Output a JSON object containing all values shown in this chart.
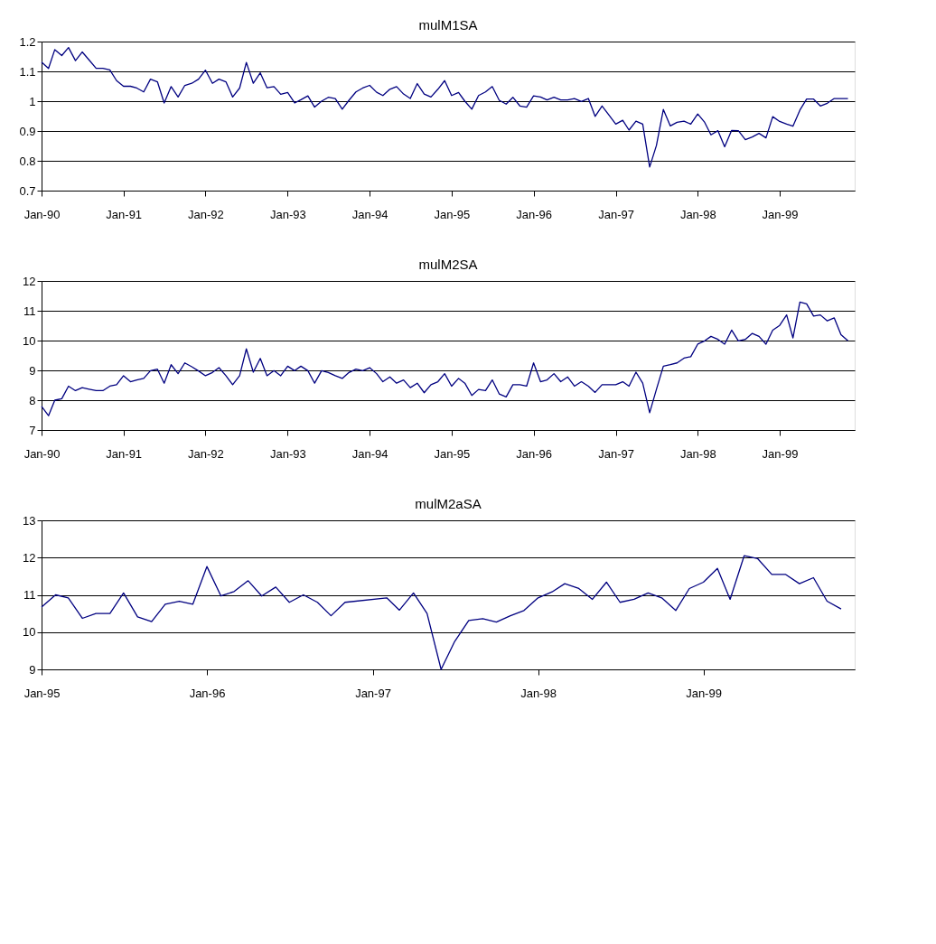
{
  "chart_data": [
    {
      "type": "line",
      "title": "mulM1SA",
      "grid": "y",
      "x": [
        "1990-01",
        "1990-02",
        "1990-03",
        "1990-04",
        "1990-05",
        "1990-06",
        "1990-07",
        "1990-08",
        "1990-09",
        "1990-10",
        "1990-11",
        "1990-12",
        "1991-01",
        "1991-02",
        "1991-03",
        "1991-04",
        "1991-05",
        "1991-06",
        "1991-07",
        "1991-08",
        "1991-09",
        "1991-10",
        "1991-11",
        "1991-12",
        "1992-01",
        "1992-02",
        "1992-03",
        "1992-04",
        "1992-05",
        "1992-06",
        "1992-07",
        "1992-08",
        "1992-09",
        "1992-10",
        "1992-11",
        "1992-12",
        "1993-01",
        "1993-02",
        "1993-03",
        "1993-04",
        "1993-05",
        "1993-06",
        "1993-07",
        "1993-08",
        "1993-09",
        "1993-10",
        "1993-11",
        "1993-12",
        "1994-01",
        "1994-02",
        "1994-03",
        "1994-04",
        "1994-05",
        "1994-06",
        "1994-07",
        "1994-08",
        "1994-09",
        "1994-10",
        "1994-11",
        "1994-12",
        "1995-01",
        "1995-02",
        "1995-03",
        "1995-04",
        "1995-05",
        "1995-06",
        "1995-07",
        "1995-08",
        "1995-09",
        "1995-10",
        "1995-11",
        "1995-12",
        "1996-01",
        "1996-02",
        "1996-03",
        "1996-04",
        "1996-05",
        "1996-06",
        "1996-07",
        "1996-08",
        "1996-09",
        "1996-10",
        "1996-11",
        "1996-12",
        "1997-01",
        "1997-02",
        "1997-03",
        "1997-04",
        "1997-05",
        "1997-06",
        "1997-07",
        "1997-08",
        "1997-09",
        "1997-10",
        "1997-11",
        "1997-12",
        "1998-01",
        "1998-02",
        "1998-03",
        "1998-04",
        "1998-05",
        "1998-06",
        "1998-07",
        "1998-08",
        "1998-09",
        "1998-10",
        "1998-11",
        "1998-12",
        "1999-01",
        "1999-02",
        "1999-03",
        "1999-04",
        "1999-05",
        "1999-06",
        "1999-07",
        "1999-08",
        "1999-09",
        "1999-10",
        "1999-11"
      ],
      "series": [
        {
          "color": "#000080",
          "values": [
            1.131,
            1.11,
            1.173,
            1.153,
            1.18,
            1.136,
            1.165,
            1.138,
            1.11,
            1.11,
            1.105,
            1.069,
            1.05,
            1.05,
            1.044,
            1.031,
            1.074,
            1.065,
            0.994,
            1.049,
            1.014,
            1.053,
            1.06,
            1.074,
            1.104,
            1.06,
            1.074,
            1.065,
            1.014,
            1.044,
            1.13,
            1.06,
            1.095,
            1.045,
            1.049,
            1.023,
            1.029,
            0.994,
            1.005,
            1.018,
            0.98,
            1.0,
            1.013,
            1.009,
            0.973,
            1.003,
            1.031,
            1.044,
            1.053,
            1.03,
            1.019,
            1.04,
            1.049,
            1.024,
            1.009,
            1.059,
            1.024,
            1.014,
            1.04,
            1.069,
            1.019,
            1.029,
            1.0,
            0.973,
            1.019,
            1.031,
            1.049,
            1.003,
            0.99,
            1.013,
            0.984,
            0.98,
            1.018,
            1.014,
            1.004,
            1.013,
            1.004,
            1.004,
            1.009,
            0.999,
            1.009,
            0.949,
            0.984,
            0.954,
            0.923,
            0.936,
            0.903,
            0.933,
            0.923,
            0.779,
            0.851,
            0.972,
            0.917,
            0.929,
            0.933,
            0.923,
            0.957,
            0.929,
            0.887,
            0.901,
            0.847,
            0.902,
            0.901,
            0.871,
            0.88,
            0.892,
            0.877,
            0.948,
            0.932,
            0.923,
            0.916,
            0.97,
            1.007,
            1.007,
            0.984,
            0.993,
            1.009,
            1.009,
            1.009
          ]
        }
      ],
      "xlim": [
        "1990-01",
        "1999-12"
      ],
      "xticks": [
        {
          "value": "1990-01",
          "label": "Jan-90"
        },
        {
          "value": "1991-01",
          "label": "Jan-91"
        },
        {
          "value": "1992-01",
          "label": "Jan-92"
        },
        {
          "value": "1993-01",
          "label": "Jan-93"
        },
        {
          "value": "1994-01",
          "label": "Jan-94"
        },
        {
          "value": "1995-01",
          "label": "Jan-95"
        },
        {
          "value": "1996-01",
          "label": "Jan-96"
        },
        {
          "value": "1997-01",
          "label": "Jan-97"
        },
        {
          "value": "1998-01",
          "label": "Jan-98"
        },
        {
          "value": "1999-01",
          "label": "Jan-99"
        }
      ],
      "ylim": [
        0.7,
        1.2
      ],
      "yticks": [
        0.7,
        0.8,
        0.9,
        1,
        1.1,
        1.2
      ]
    },
    {
      "type": "line",
      "title": "mulM2SA",
      "grid": "y",
      "x": [
        "1990-01",
        "1990-02",
        "1990-03",
        "1990-04",
        "1990-05",
        "1990-06",
        "1990-07",
        "1990-08",
        "1990-09",
        "1990-10",
        "1990-11",
        "1990-12",
        "1991-01",
        "1991-02",
        "1991-03",
        "1991-04",
        "1991-05",
        "1991-06",
        "1991-07",
        "1991-08",
        "1991-09",
        "1991-10",
        "1991-11",
        "1991-12",
        "1992-01",
        "1992-02",
        "1992-03",
        "1992-04",
        "1992-05",
        "1992-06",
        "1992-07",
        "1992-08",
        "1992-09",
        "1992-10",
        "1992-11",
        "1992-12",
        "1993-01",
        "1993-02",
        "1993-03",
        "1993-04",
        "1993-05",
        "1993-06",
        "1993-07",
        "1993-08",
        "1993-09",
        "1993-10",
        "1993-11",
        "1993-12",
        "1994-01",
        "1994-02",
        "1994-03",
        "1994-04",
        "1994-05",
        "1994-06",
        "1994-07",
        "1994-08",
        "1994-09",
        "1994-10",
        "1994-11",
        "1994-12",
        "1995-01",
        "1995-02",
        "1995-03",
        "1995-04",
        "1995-05",
        "1995-06",
        "1995-07",
        "1995-08",
        "1995-09",
        "1995-10",
        "1995-11",
        "1995-12",
        "1996-01",
        "1996-02",
        "1996-03",
        "1996-04",
        "1996-05",
        "1996-06",
        "1996-07",
        "1996-08",
        "1996-09",
        "1996-10",
        "1996-11",
        "1996-12",
        "1997-01",
        "1997-02",
        "1997-03",
        "1997-04",
        "1997-05",
        "1997-06",
        "1997-07",
        "1997-08",
        "1997-09",
        "1997-10",
        "1997-11",
        "1997-12",
        "1998-01",
        "1998-02",
        "1998-03",
        "1998-04",
        "1998-05",
        "1998-06",
        "1998-07",
        "1998-08",
        "1998-09",
        "1998-10",
        "1998-11",
        "1998-12",
        "1999-01",
        "1999-02",
        "1999-03",
        "1999-04",
        "1999-05",
        "1999-06",
        "1999-07",
        "1999-08",
        "1999-09",
        "1999-10",
        "1999-11"
      ],
      "series": [
        {
          "color": "#000080",
          "values": [
            7.79,
            7.48,
            8.0,
            8.05,
            8.47,
            8.32,
            8.42,
            8.37,
            8.32,
            8.32,
            8.47,
            8.52,
            8.82,
            8.62,
            8.68,
            8.73,
            8.99,
            9.04,
            8.57,
            9.19,
            8.89,
            9.25,
            9.12,
            8.98,
            8.82,
            8.93,
            9.09,
            8.82,
            8.52,
            8.82,
            9.72,
            8.94,
            9.4,
            8.82,
            8.99,
            8.82,
            9.14,
            8.99,
            9.14,
            8.99,
            8.57,
            8.99,
            8.93,
            8.82,
            8.73,
            8.93,
            9.04,
            8.99,
            9.09,
            8.89,
            8.62,
            8.78,
            8.57,
            8.68,
            8.42,
            8.57,
            8.25,
            8.52,
            8.62,
            8.89,
            8.47,
            8.73,
            8.57,
            8.16,
            8.36,
            8.32,
            8.68,
            8.21,
            8.11,
            8.52,
            8.52,
            8.47,
            9.25,
            8.62,
            8.68,
            8.89,
            8.62,
            8.78,
            8.47,
            8.62,
            8.47,
            8.26,
            8.52,
            8.52,
            8.52,
            8.62,
            8.47,
            8.94,
            8.57,
            7.58,
            8.36,
            9.14,
            9.19,
            9.25,
            9.41,
            9.46,
            9.88,
            9.99,
            10.14,
            10.04,
            9.88,
            10.35,
            9.99,
            10.04,
            10.24,
            10.14,
            9.88,
            10.35,
            10.51,
            10.86,
            10.09,
            11.29,
            11.23,
            10.82,
            10.86,
            10.66,
            10.76,
            10.2,
            9.99
          ]
        }
      ],
      "xlim": [
        "1990-01",
        "1999-12"
      ],
      "xticks": [
        {
          "value": "1990-01",
          "label": "Jan-90"
        },
        {
          "value": "1991-01",
          "label": "Jan-91"
        },
        {
          "value": "1992-01",
          "label": "Jan-92"
        },
        {
          "value": "1993-01",
          "label": "Jan-93"
        },
        {
          "value": "1994-01",
          "label": "Jan-94"
        },
        {
          "value": "1995-01",
          "label": "Jan-95"
        },
        {
          "value": "1996-01",
          "label": "Jan-96"
        },
        {
          "value": "1997-01",
          "label": "Jan-97"
        },
        {
          "value": "1998-01",
          "label": "Jan-98"
        },
        {
          "value": "1999-01",
          "label": "Jan-99"
        }
      ],
      "ylim": [
        7,
        12
      ],
      "yticks": [
        7,
        8,
        9,
        10,
        11,
        12
      ]
    },
    {
      "type": "line",
      "title": "mulM2aSA",
      "grid": "y",
      "x": [
        "1995-01",
        "1995-02",
        "1995-03",
        "1995-04",
        "1995-05",
        "1995-06",
        "1995-07",
        "1995-08",
        "1995-09",
        "1995-10",
        "1995-11",
        "1995-12",
        "1996-01",
        "1996-02",
        "1996-03",
        "1996-04",
        "1996-05",
        "1996-06",
        "1996-07",
        "1996-08",
        "1996-09",
        "1996-10",
        "1996-11",
        "1997-02",
        "1997-03",
        "1997-04",
        "1997-05",
        "1997-06",
        "1997-07",
        "1997-08",
        "1997-09",
        "1997-10",
        "1997-11",
        "1997-12",
        "1998-01",
        "1998-02",
        "1998-03",
        "1998-04",
        "1998-05",
        "1998-06",
        "1998-07",
        "1998-08",
        "1998-09",
        "1998-10",
        "1998-11",
        "1998-12",
        "1999-01",
        "1999-02",
        "1999-03",
        "1999-04",
        "1999-05",
        "1999-06",
        "1999-07",
        "1999-08",
        "1999-09",
        "1999-10",
        "1999-11"
      ],
      "series": [
        {
          "color": "#000080",
          "values": [
            10.67,
            11.0,
            10.92,
            10.37,
            10.5,
            10.5,
            11.05,
            10.41,
            10.28,
            10.75,
            10.83,
            10.75,
            11.76,
            10.97,
            11.09,
            11.38,
            10.97,
            11.21,
            10.8,
            11.0,
            10.8,
            10.44,
            10.8,
            10.92,
            10.59,
            11.05,
            10.5,
            9.0,
            9.75,
            10.31,
            10.36,
            10.27,
            10.44,
            10.58,
            10.92,
            11.08,
            11.3,
            11.17,
            10.88,
            11.34,
            10.8,
            10.88,
            11.05,
            10.92,
            10.58,
            11.17,
            11.34,
            11.71,
            10.88,
            12.05,
            11.97,
            11.55,
            11.55,
            11.3,
            11.46,
            10.83,
            10.62
          ]
        }
      ],
      "xlim": [
        "1995-01",
        "1999-12"
      ],
      "xticks": [
        {
          "value": "1995-01",
          "label": "Jan-95"
        },
        {
          "value": "1996-01",
          "label": "Jan-96"
        },
        {
          "value": "1997-01",
          "label": "Jan-97"
        },
        {
          "value": "1998-01",
          "label": "Jan-98"
        },
        {
          "value": "1999-01",
          "label": "Jan-99"
        }
      ],
      "ylim": [
        9,
        13
      ],
      "yticks": [
        9,
        10,
        11,
        12,
        13
      ]
    }
  ]
}
